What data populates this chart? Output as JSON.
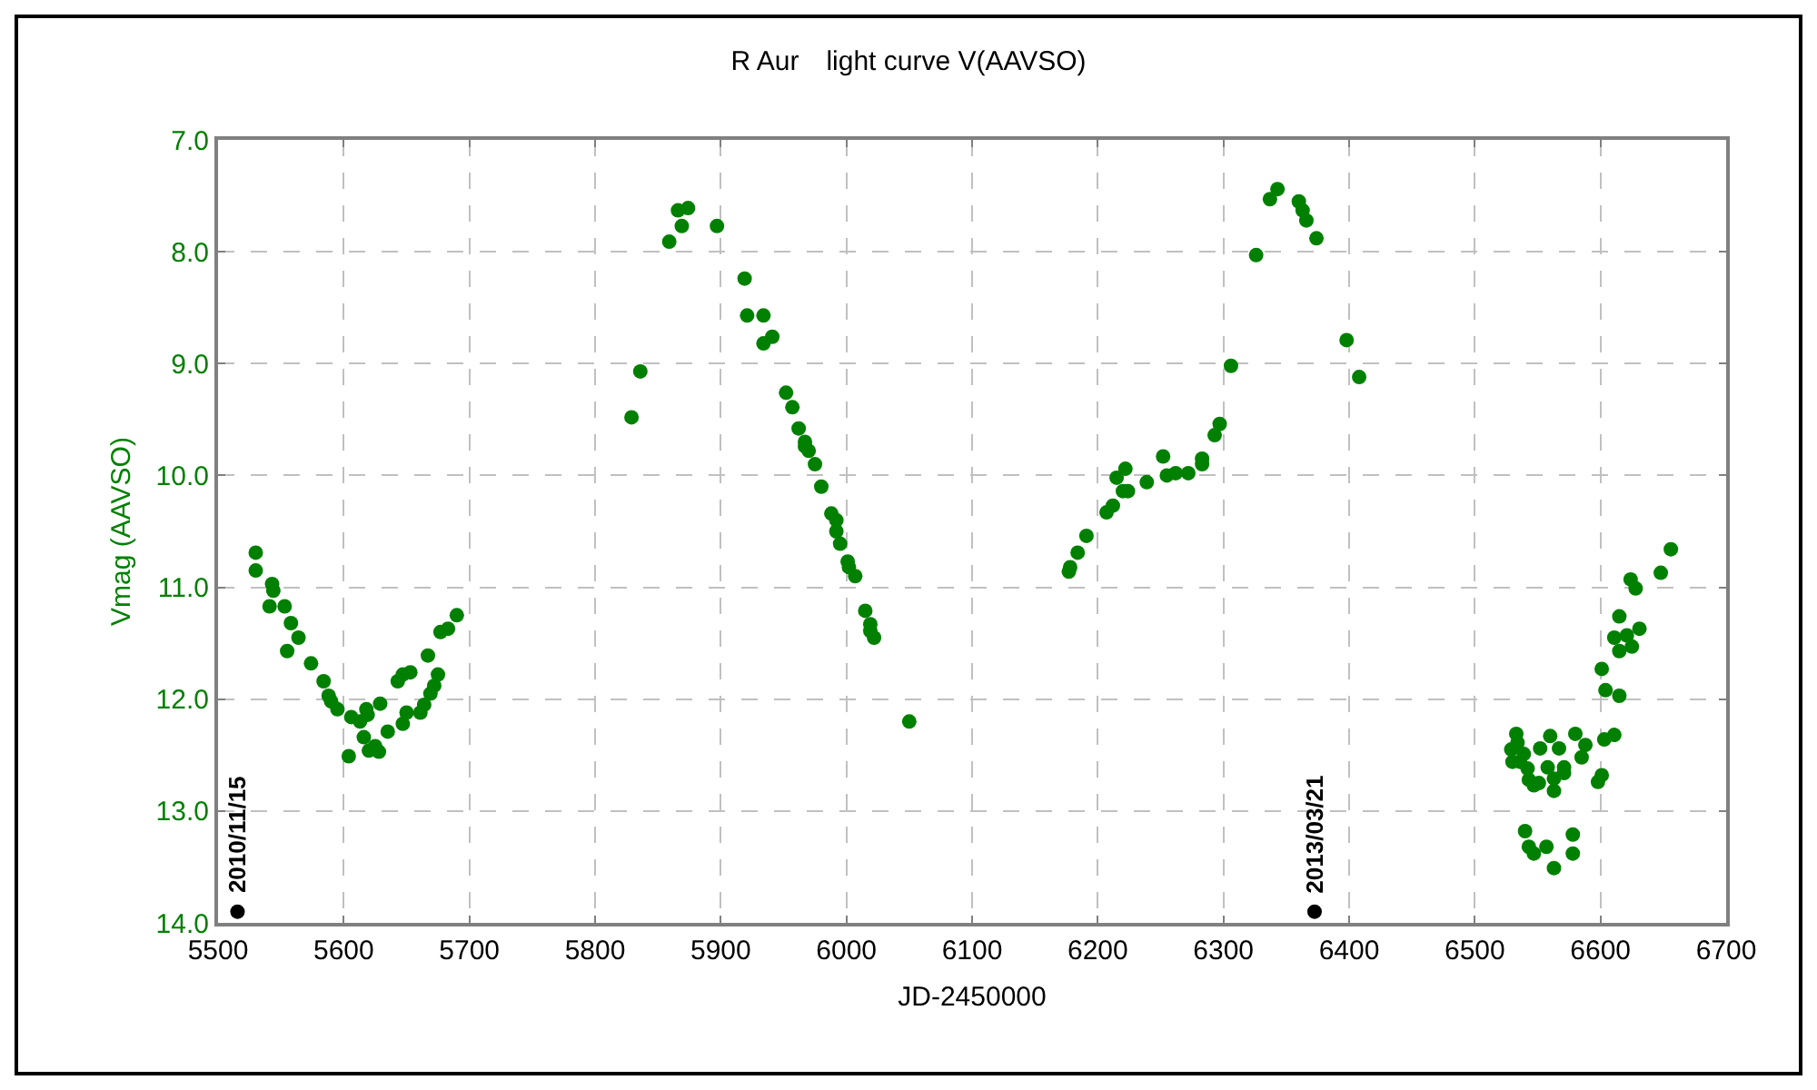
{
  "chart_data": {
    "type": "scatter",
    "title": "R Aur　light curve V(AAVSO)",
    "xlabel": "JD-2450000",
    "ylabel": "Vmag (AAVSO)",
    "xlim": [
      5500,
      6700
    ],
    "xticks": [
      5500,
      5600,
      5700,
      5800,
      5900,
      6000,
      6100,
      6200,
      6300,
      6400,
      6500,
      6600,
      6700
    ],
    "ylim": [
      14,
      7
    ],
    "yticks": [
      {
        "value": 7,
        "label": "7.0"
      },
      {
        "value": 8,
        "label": "8.0"
      },
      {
        "value": 9,
        "label": "9.0"
      },
      {
        "value": 10,
        "label": "10.0"
      },
      {
        "value": 11,
        "label": "11.0"
      },
      {
        "value": 12,
        "label": "12.0"
      },
      {
        "value": 13,
        "label": "13.0"
      },
      {
        "value": 14,
        "label": "14.0"
      }
    ],
    "grid": true,
    "marker": "circle",
    "series": [
      {
        "color": "#008000",
        "x": [
          5530,
          5530,
          5543,
          5544,
          5541,
          5553,
          5558,
          5564,
          5555,
          5574,
          5584,
          5588,
          5590,
          5595,
          5606,
          5613,
          5618,
          5629,
          5619,
          5616,
          5604,
          5620,
          5628,
          5625,
          5635,
          5647,
          5650,
          5661,
          5664,
          5669,
          5672,
          5675,
          5643,
          5647,
          5653,
          5667,
          5677,
          5683,
          5690,
          5866,
          5874,
          5869,
          5897,
          5859,
          5919,
          5921,
          5934,
          5941,
          5934,
          5836,
          5829,
          5952,
          5957,
          5962,
          5967,
          5967,
          5970,
          5975,
          5980,
          5988,
          5992,
          5992,
          5995,
          6001,
          6002,
          6007,
          6015,
          6019,
          6019,
          6022,
          6050,
          6343,
          6337,
          6360,
          6363,
          6366,
          6374,
          6326,
          6398,
          6408,
          6306,
          6297,
          6293,
          6283,
          6283,
          6272,
          6262,
          6255,
          6252,
          6239,
          6222,
          6215,
          6220,
          6224,
          6212,
          6207,
          6191,
          6184,
          6178,
          6177,
          6656,
          6648,
          6624,
          6628,
          6615,
          6631,
          6621,
          6611,
          6625,
          6615,
          6601,
          6604,
          6615,
          6611,
          6603,
          6601,
          6598,
          6533,
          6560,
          6580,
          6588,
          6585,
          6552,
          6567,
          6534,
          6529,
          6539,
          6530,
          6536,
          6542,
          6543,
          6547,
          6551,
          6558,
          6571,
          6571,
          6563,
          6563,
          6540,
          6578,
          6543,
          6557,
          6547,
          6578,
          6563
        ],
        "values": [
          10.69,
          10.85,
          10.97,
          11.03,
          11.17,
          11.17,
          11.32,
          11.45,
          11.57,
          11.68,
          11.84,
          11.97,
          12.02,
          12.09,
          12.16,
          12.2,
          12.09,
          12.04,
          12.14,
          12.34,
          12.51,
          12.46,
          12.47,
          12.42,
          12.29,
          12.22,
          12.12,
          12.12,
          12.05,
          11.95,
          11.88,
          11.78,
          11.84,
          11.78,
          11.76,
          11.61,
          11.4,
          11.37,
          11.25,
          7.63,
          7.61,
          7.77,
          7.77,
          7.91,
          8.24,
          8.57,
          8.57,
          8.76,
          8.82,
          9.07,
          9.48,
          9.26,
          9.39,
          9.58,
          9.7,
          9.74,
          9.78,
          9.9,
          10.1,
          10.34,
          10.4,
          10.5,
          10.61,
          10.77,
          10.82,
          10.9,
          11.21,
          11.33,
          11.39,
          11.45,
          12.2,
          7.44,
          7.53,
          7.55,
          7.63,
          7.72,
          7.88,
          8.03,
          8.79,
          9.12,
          9.02,
          9.54,
          9.64,
          9.85,
          9.9,
          9.98,
          9.98,
          10,
          9.83,
          10.06,
          9.94,
          10.02,
          10.14,
          10.14,
          10.27,
          10.33,
          10.54,
          10.69,
          10.82,
          10.86,
          10.66,
          10.87,
          10.93,
          11.01,
          11.26,
          11.37,
          11.43,
          11.45,
          11.53,
          11.57,
          11.73,
          11.92,
          11.97,
          12.32,
          12.36,
          12.68,
          12.74,
          12.31,
          12.33,
          12.31,
          12.41,
          12.52,
          12.44,
          12.44,
          12.39,
          12.45,
          12.49,
          12.56,
          12.56,
          12.62,
          12.72,
          12.77,
          12.75,
          12.61,
          12.61,
          12.66,
          12.71,
          12.82,
          13.18,
          13.21,
          13.32,
          13.32,
          13.38,
          13.38,
          13.51
        ]
      },
      {
        "color": "#000000",
        "x": [
          5515.5,
          6372.5
        ],
        "values": [
          13.9,
          13.9
        ]
      }
    ],
    "annotations": [
      {
        "text": "2010/11/15",
        "x": 5515.5,
        "y": 13.9
      },
      {
        "text": "2013/03/21",
        "x": 6372.5,
        "y": 13.9
      }
    ]
  }
}
